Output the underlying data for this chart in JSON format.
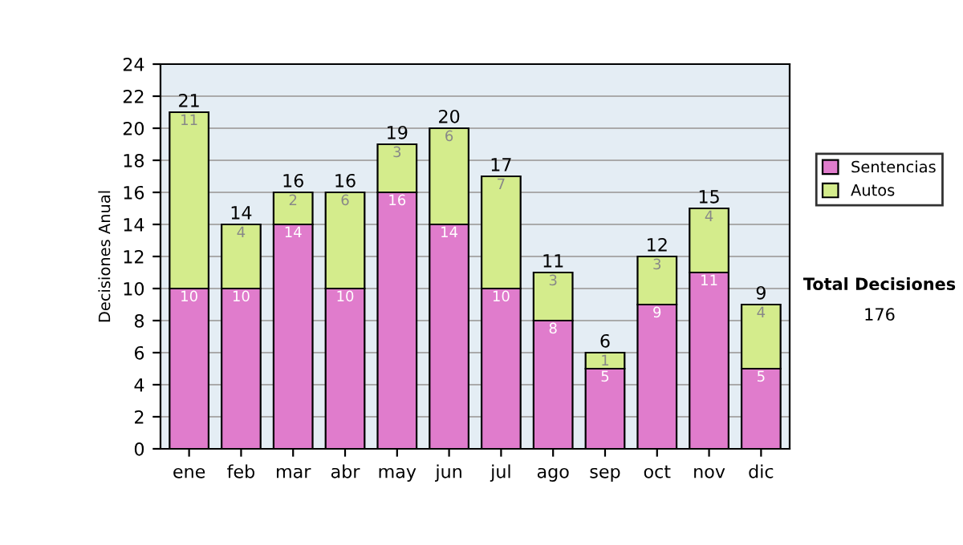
{
  "chart_data": {
    "type": "bar",
    "stacked": true,
    "ylabel": "Decisiones Anual",
    "categories": [
      "ene",
      "feb",
      "mar",
      "abr",
      "may",
      "jun",
      "jul",
      "ago",
      "sep",
      "oct",
      "nov",
      "dic"
    ],
    "series": [
      {
        "name": "Sentencias",
        "color": "#e07ccc",
        "values": [
          10,
          10,
          14,
          10,
          16,
          14,
          10,
          8,
          5,
          9,
          11,
          5
        ]
      },
      {
        "name": "Autos",
        "color": "#d4ec8c",
        "values": [
          11,
          4,
          2,
          6,
          3,
          6,
          7,
          3,
          1,
          3,
          4,
          4
        ]
      }
    ],
    "totals": [
      "21",
      "14",
      "16",
      "16",
      "19",
      "20",
      "17",
      "11",
      "6",
      "12",
      "15",
      "9"
    ],
    "data_labels": true,
    "ylim": [
      0,
      24
    ],
    "yticks": [
      0,
      2,
      4,
      6,
      8,
      10,
      12,
      14,
      16,
      18,
      20,
      22,
      24
    ],
    "grid": "y",
    "legend": "right",
    "annotations": [
      "Total Decisiones",
      "176"
    ]
  }
}
